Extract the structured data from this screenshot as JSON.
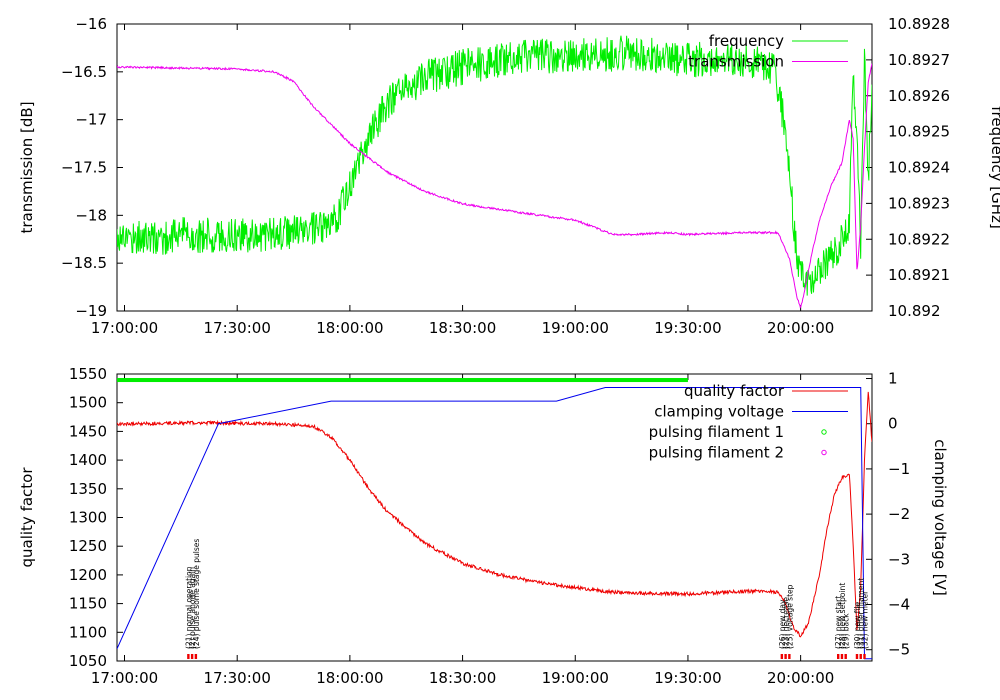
{
  "chart_data": [
    {
      "type": "line",
      "x_unit": "time",
      "x_ticks": [
        "17:00:00",
        "17:30:00",
        "18:00:00",
        "18:30:00",
        "19:00:00",
        "19:30:00",
        "20:00:00"
      ],
      "x_range": [
        "16:58:00",
        "20:19:00"
      ],
      "ylabel": "transmission [dB]",
      "ylim": [
        -19,
        -16
      ],
      "y_ticks": [
        "-16",
        "-16.5",
        "-17",
        "-17.5",
        "-18",
        "-18.5",
        "-19"
      ],
      "y2label": "frequency [GHz]",
      "y2lim": [
        10.892,
        10.8928
      ],
      "y2_ticks": [
        "10.892",
        "10.8921",
        "10.8922",
        "10.8923",
        "10.8924",
        "10.8925",
        "10.8926",
        "10.8927",
        "10.8928"
      ],
      "legend_position": "top-right",
      "series": [
        {
          "name": "frequency",
          "axis": "right",
          "color": "#00ee00",
          "noise": 5e-05,
          "points": [
            [
              "16:58:00",
              10.89221
            ],
            [
              "17:10:00",
              10.8922
            ],
            [
              "17:15:00",
              10.89222
            ],
            [
              "17:20:00",
              10.89221
            ],
            [
              "17:30:00",
              10.89221
            ],
            [
              "17:45:00",
              10.89222
            ],
            [
              "17:55:00",
              10.89223
            ],
            [
              "18:00:00",
              10.89235
            ],
            [
              "18:05:00",
              10.89248
            ],
            [
              "18:10:00",
              10.89258
            ],
            [
              "18:20:00",
              10.89265
            ],
            [
              "18:30:00",
              10.89268
            ],
            [
              "18:45:00",
              10.89271
            ],
            [
              "19:00:00",
              10.89271
            ],
            [
              "19:15:00",
              10.89272
            ],
            [
              "19:30:00",
              10.8927
            ],
            [
              "19:45:00",
              10.8927
            ],
            [
              "19:53:00",
              10.89268
            ],
            [
              "19:56:00",
              10.8925
            ],
            [
              "19:59:00",
              10.89215
            ],
            [
              "20:02:00",
              10.89207
            ],
            [
              "20:06:00",
              10.89212
            ],
            [
              "20:10:00",
              10.89217
            ],
            [
              "20:13:00",
              10.89225
            ],
            [
              "20:14:00",
              10.89268
            ],
            [
              "20:15:00",
              10.89246
            ],
            [
              "20:16:00",
              10.89218
            ],
            [
              "20:17:00",
              10.8927
            ],
            [
              "20:18:00",
              10.89235
            ],
            [
              "20:19:00",
              10.89265
            ]
          ]
        },
        {
          "name": "transmission",
          "axis": "left",
          "color": "#ee00ee",
          "noise": 0.01,
          "points": [
            [
              "16:58:00",
              -16.45
            ],
            [
              "17:30:00",
              -16.47
            ],
            [
              "17:40:00",
              -16.5
            ],
            [
              "17:45:00",
              -16.6
            ],
            [
              "17:50:00",
              -16.85
            ],
            [
              "17:55:00",
              -17.05
            ],
            [
              "18:00:00",
              -17.25
            ],
            [
              "18:10:00",
              -17.55
            ],
            [
              "18:20:00",
              -17.75
            ],
            [
              "18:30:00",
              -17.88
            ],
            [
              "18:45:00",
              -17.97
            ],
            [
              "19:00:00",
              -18.05
            ],
            [
              "19:10:00",
              -18.2
            ],
            [
              "19:15:00",
              -18.2
            ],
            [
              "19:25:00",
              -18.18
            ],
            [
              "19:30:00",
              -18.2
            ],
            [
              "19:45:00",
              -18.18
            ],
            [
              "19:54:00",
              -18.18
            ],
            [
              "19:57:00",
              -18.45
            ],
            [
              "19:59:00",
              -18.85
            ],
            [
              "20:00:00",
              -18.97
            ],
            [
              "20:01:00",
              -18.8
            ],
            [
              "20:03:00",
              -18.4
            ],
            [
              "20:05:00",
              -18.05
            ],
            [
              "20:08:00",
              -17.7
            ],
            [
              "20:11:00",
              -17.45
            ],
            [
              "20:13:00",
              -17.0
            ],
            [
              "20:14:00",
              -17.2
            ],
            [
              "20:15:00",
              -18.6
            ],
            [
              "20:16:00",
              -18.1
            ],
            [
              "20:17:00",
              -17.3
            ],
            [
              "20:18:00",
              -16.6
            ],
            [
              "20:19:00",
              -16.42
            ]
          ]
        }
      ]
    },
    {
      "type": "line",
      "x_unit": "time",
      "x_ticks": [
        "17:00:00",
        "17:30:00",
        "18:00:00",
        "18:30:00",
        "19:00:00",
        "19:30:00",
        "20:00:00"
      ],
      "x_range": [
        "16:58:00",
        "20:19:00"
      ],
      "ylabel": "quality factor",
      "ylim": [
        1050,
        1550
      ],
      "y_ticks": [
        "1550",
        "1500",
        "1450",
        "1400",
        "1350",
        "1300",
        "1250",
        "1200",
        "1150",
        "1100",
        "1050"
      ],
      "y2label": "clamping voltage [V]",
      "y2lim": [
        -5.25,
        1.1
      ],
      "y2_ticks": [
        "1",
        "0",
        "-1",
        "-2",
        "-3",
        "-4",
        "-5"
      ],
      "legend_position": "top-right",
      "series": [
        {
          "name": "quality factor",
          "axis": "left",
          "color": "#ee0000",
          "noise": 3,
          "points": [
            [
              "16:58:00",
              1463
            ],
            [
              "17:20:00",
              1465
            ],
            [
              "17:40:00",
              1463
            ],
            [
              "17:50:00",
              1460
            ],
            [
              "17:55:00",
              1440
            ],
            [
              "18:00:00",
              1400
            ],
            [
              "18:05:00",
              1350
            ],
            [
              "18:10:00",
              1310
            ],
            [
              "18:20:00",
              1255
            ],
            [
              "18:30:00",
              1220
            ],
            [
              "18:40:00",
              1200
            ],
            [
              "18:50:00",
              1187
            ],
            [
              "19:00:00",
              1178
            ],
            [
              "19:10:00",
              1170
            ],
            [
              "19:20:00",
              1168
            ],
            [
              "19:30:00",
              1167
            ],
            [
              "19:40:00",
              1170
            ],
            [
              "19:50:00",
              1172
            ],
            [
              "19:54:00",
              1170
            ],
            [
              "19:56:00",
              1150
            ],
            [
              "19:58:00",
              1110
            ],
            [
              "20:00:00",
              1093
            ],
            [
              "20:02:00",
              1115
            ],
            [
              "20:05:00",
              1200
            ],
            [
              "20:07:00",
              1280
            ],
            [
              "20:09:00",
              1340
            ],
            [
              "20:11:00",
              1370
            ],
            [
              "20:13:00",
              1375
            ],
            [
              "20:14:00",
              1250
            ],
            [
              "20:15:00",
              1100
            ],
            [
              "20:16:00",
              1180
            ],
            [
              "20:17:00",
              1400
            ],
            [
              "20:18:00",
              1520
            ],
            [
              "20:19:00",
              1430
            ]
          ]
        },
        {
          "name": "clamping voltage",
          "axis": "right",
          "color": "#0000ee",
          "noise": 0,
          "points": [
            [
              "16:58:00",
              -4.98
            ],
            [
              "17:25:00",
              0.0
            ],
            [
              "17:55:00",
              0.5
            ],
            [
              "18:55:00",
              0.5
            ],
            [
              "19:08:00",
              0.8
            ],
            [
              "20:16:00",
              0.8
            ],
            [
              "20:17:00",
              -5.2
            ],
            [
              "20:19:00",
              -5.2
            ]
          ]
        },
        {
          "name": "pulsing filament 1",
          "axis": "left",
          "color": "#00ee00",
          "marker": "circle",
          "band": [
            1536,
            1543
          ],
          "x_range": [
            "16:58:00",
            "19:30:00"
          ]
        },
        {
          "name": "pulsing filament 2",
          "axis": "left",
          "color": "#ee00ee",
          "marker": "circle",
          "points": []
        }
      ],
      "annotations": [
        {
          "x": "17:17:00",
          "text": "(21) normal operation",
          "color": "#ee0000"
        },
        {
          "x": "17:18:00",
          "text": "(2) pulse anode again",
          "color": "#ee0000"
        },
        {
          "x": "17:19:00",
          "text": "(24) pulse some stage pulses",
          "color": "#ee0000"
        },
        {
          "x": "19:55:00",
          "text": "(26) new day",
          "color": "#ee0000"
        },
        {
          "x": "19:56:00",
          "text": "(23) decrease",
          "color": "#ee0000"
        },
        {
          "x": "19:57:00",
          "text": "(25) voltage step",
          "color": "#ee0000"
        },
        {
          "x": "20:10:00",
          "text": "(27) new start",
          "color": "#ee0000"
        },
        {
          "x": "20:11:00",
          "text": "(28) new setpoint",
          "color": "#ee0000"
        },
        {
          "x": "20:12:00",
          "text": "(29) back",
          "color": "#ee0000"
        },
        {
          "x": "20:15:00",
          "text": "(30) new file",
          "color": "#ee0000"
        },
        {
          "x": "20:16:00",
          "text": "(31) other filament",
          "color": "#ee0000"
        },
        {
          "x": "20:17:00",
          "text": "(32) new meter",
          "color": "#ee0000"
        }
      ]
    }
  ]
}
